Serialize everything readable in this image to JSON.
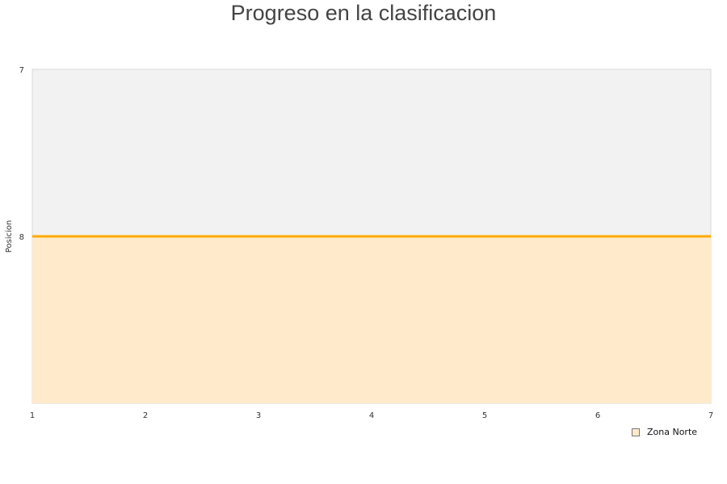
{
  "chart_data": {
    "type": "area",
    "title": "Progreso en la clasificacion",
    "ylabel": "Posicion",
    "x": [
      1,
      2,
      3,
      4,
      5,
      6,
      7
    ],
    "xlim": [
      1,
      7
    ],
    "ylim": [
      9,
      7
    ],
    "y_inverted": true,
    "yticks": [
      7,
      8
    ],
    "xticks": [
      1,
      2,
      3,
      4,
      5,
      6,
      7
    ],
    "series": [
      {
        "name": "Zona Norte",
        "values": [
          8,
          8,
          8,
          8,
          8,
          8,
          8
        ],
        "line_color": "#FFAA00",
        "fill_color": "#FFEBCC"
      }
    ],
    "plot_background": "#F2F2F2",
    "legend": "bottom-right",
    "grid": false
  }
}
